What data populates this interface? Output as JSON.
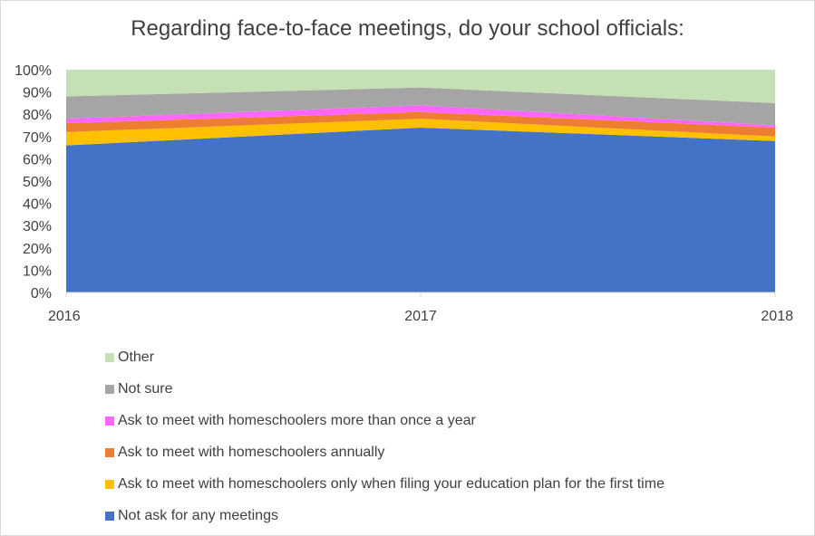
{
  "chart_data": {
    "type": "area",
    "stacked": true,
    "title": "Regarding face-to-face meetings, do your school officials:",
    "x": [
      "2016",
      "2017",
      "2018"
    ],
    "yticks": [
      "0%",
      "10%",
      "20%",
      "30%",
      "40%",
      "50%",
      "60%",
      "70%",
      "80%",
      "90%",
      "100%"
    ],
    "ylim": [
      0,
      100
    ],
    "grid": false,
    "legend_position": "bottom",
    "series": [
      {
        "name": "Not ask for any meetings",
        "color": "#4472C4",
        "values": [
          66,
          74,
          68
        ]
      },
      {
        "name": "Ask to meet with homeschoolers only when filing your education plan for the first time",
        "color": "#FFC000",
        "values": [
          6,
          4,
          2
        ]
      },
      {
        "name": "Ask to meet with homeschoolers annually",
        "color": "#ED7D31",
        "values": [
          4,
          3,
          4
        ]
      },
      {
        "name": "Ask to meet with homeschoolers more than once a year",
        "color": "#FF66FF",
        "values": [
          2,
          3,
          1
        ]
      },
      {
        "name": "Not sure",
        "color": "#A5A5A5",
        "values": [
          10,
          8,
          10
        ]
      },
      {
        "name": "Other",
        "color": "#C5E0B4",
        "values": [
          12,
          8,
          15
        ]
      }
    ]
  }
}
